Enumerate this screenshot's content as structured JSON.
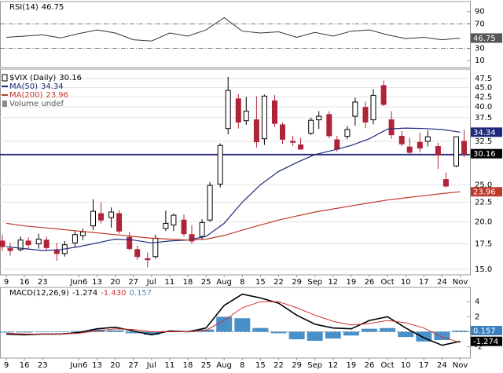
{
  "chart_data": [
    {
      "type": "line",
      "title": "RSI(14)",
      "ylim": [
        -1.25,
        106.25
      ],
      "yticks": [
        10,
        30,
        70,
        90
      ],
      "reference_lines": [
        30,
        70
      ],
      "reference_color": "#666",
      "series": [
        {
          "color": "#333",
          "box_color": "#555",
          "values": [
            48,
            50,
            52,
            47,
            54,
            60,
            55,
            44,
            42,
            55,
            50,
            60,
            80,
            58,
            55,
            57,
            48,
            56,
            50,
            58,
            60,
            52,
            46,
            48,
            44,
            46.75
          ]
        }
      ]
    },
    {
      "type": "candlestick",
      "log_scale": true,
      "ylim": [
        14.51,
        50.26
      ],
      "yticks": [
        47.5,
        {
          "value": 45,
          "label": "45.0"
        },
        42.5,
        {
          "value": 40,
          "label": "40.0"
        },
        37.5,
        32.5,
        {
          "value": 25,
          "label": "25.0"
        },
        22.5,
        {
          "value": 20,
          "label": "20.0"
        },
        17.5,
        {
          "value": 15,
          "label": "15.0"
        }
      ],
      "grid": true,
      "reference_lines": [
        30
      ],
      "reference_color": "#2b2f7a",
      "categories": [
        "9",
        "16",
        "23",
        null,
        "Jun6",
        "13",
        "20",
        "27",
        "Jul",
        "11",
        "18",
        "25",
        "Aug",
        "8",
        "15",
        "22",
        "29",
        "Sep",
        "12",
        "19",
        "26",
        "Oct",
        "10",
        "17",
        "24",
        "Nov"
      ],
      "candles": {
        "name": "$VIX (Daily)",
        "up_color": "#000000",
        "down_color": "#b0243a",
        "box_color": "#000000",
        "open": [
          17.8,
          17.0,
          16.9,
          17.8,
          17.5,
          17.9,
          16.8,
          16.5,
          17.6,
          18.4,
          19.5,
          21.0,
          20.5,
          21.0,
          18.2,
          16.9,
          16.0,
          16.2,
          19.2,
          19.6,
          20.2,
          18.5,
          18.3,
          20.2,
          25.1,
          35.1,
          42.0,
          36.8,
          37.0,
          33.0,
          41.5,
          35.9,
          32.5,
          31.8,
          34.1,
          37.0,
          38.2,
          32.8,
          33.5,
          37.8,
          39.9,
          37.0,
          45.5,
          37.0,
          33.5,
          31.4,
          32.3,
          32.5,
          31.5,
          25.8,
          28.0,
          32.5
        ],
        "high": [
          18.5,
          17.6,
          18.3,
          18.2,
          18.6,
          18.3,
          17.6,
          17.8,
          18.9,
          19.2,
          22.9,
          22.5,
          21.8,
          21.4,
          18.8,
          17.3,
          16.6,
          18.5,
          21.4,
          21.0,
          20.9,
          19.6,
          20.3,
          25.4,
          32.1,
          48.0,
          43.2,
          42.5,
          42.7,
          43.1,
          43.0,
          36.4,
          33.6,
          33.2,
          37.5,
          39.0,
          39.0,
          33.6,
          35.6,
          42.3,
          41.3,
          44.5,
          46.9,
          39.0,
          34.6,
          33.2,
          34.2,
          34.7,
          32.2,
          26.9,
          33.0,
          34.8
        ],
        "low": [
          16.8,
          16.3,
          16.7,
          16.9,
          17.0,
          16.8,
          15.8,
          16.2,
          17.2,
          17.9,
          19.0,
          19.8,
          19.3,
          18.6,
          16.8,
          15.9,
          15.2,
          16.0,
          18.9,
          18.9,
          18.3,
          17.5,
          17.9,
          20.0,
          24.6,
          33.9,
          35.1,
          35.9,
          31.3,
          31.8,
          35.4,
          32.0,
          31.6,
          30.9,
          33.8,
          35.0,
          33.1,
          30.5,
          32.9,
          35.7,
          35.2,
          36.0,
          40.2,
          33.0,
          31.6,
          30.1,
          30.4,
          31.5,
          27.5,
          24.6,
          27.8,
          29.5
        ],
        "close": [
          17.2,
          16.8,
          17.9,
          17.4,
          18.0,
          17.1,
          16.5,
          17.4,
          18.5,
          18.8,
          21.3,
          20.2,
          21.2,
          18.9,
          17.0,
          16.2,
          15.9,
          18.1,
          19.8,
          20.8,
          18.6,
          17.8,
          19.9,
          24.9,
          31.7,
          44.2,
          36.5,
          39.0,
          32.4,
          42.7,
          36.2,
          32.9,
          32.3,
          31.0,
          36.9,
          37.8,
          33.6,
          31.0,
          34.9,
          41.2,
          36.5,
          42.9,
          40.6,
          33.8,
          32.0,
          30.4,
          31.2,
          33.4,
          29.9,
          24.8,
          33.4,
          30.16
        ]
      },
      "series": [
        {
          "name": "MA(50)",
          "color": "#1f2a7a",
          "values": [
            17.2,
            17.0,
            16.8,
            16.9,
            17.2,
            17.6,
            18.0,
            17.9,
            17.6,
            17.8,
            17.9,
            18.3,
            19.8,
            22.5,
            25.0,
            27.1,
            28.6,
            30.0,
            30.8,
            31.7,
            33.0,
            35.0,
            35.2,
            35.1,
            34.9,
            34.34
          ]
        },
        {
          "name": "MA(200)",
          "color": "#c0392b",
          "values": [
            19.8,
            19.5,
            19.3,
            19.1,
            18.9,
            18.7,
            18.5,
            18.3,
            18.1,
            18.0,
            17.9,
            18.0,
            18.4,
            19.0,
            19.6,
            20.2,
            20.7,
            21.2,
            21.6,
            22.0,
            22.4,
            22.8,
            23.1,
            23.4,
            23.7,
            23.96
          ]
        }
      ],
      "volume_label": "Volume undef"
    },
    {
      "type": "macd",
      "title": "MACD(12,26,9)",
      "ylim": [
        -3.5,
        5.9
      ],
      "yticks": [
        4,
        2,
        -2
      ],
      "categories": [
        "9",
        "16",
        "23",
        null,
        "Jun6",
        "13",
        "20",
        "27",
        "Jul",
        "11",
        "18",
        "25",
        "Aug",
        "8",
        "15",
        "22",
        "29",
        "Sep",
        "12",
        "19",
        "26",
        "Oct",
        "10",
        "17",
        "24",
        "Nov"
      ],
      "histogram": {
        "color": "#4a90c8",
        "box_color": "#3a7fc0",
        "values": [
          -0.1,
          -0.1,
          0,
          0,
          0.1,
          0.3,
          0.2,
          -0.2,
          -0.4,
          0.1,
          0,
          0.3,
          2.0,
          1.8,
          0.5,
          -0.2,
          -1.0,
          -1.2,
          -0.9,
          -0.5,
          0.4,
          0.5,
          -0.7,
          -1.3,
          -1.1,
          0.157
        ]
      },
      "series": [
        {
          "color": "#000000",
          "box_color": "#000000",
          "values": [
            -0.3,
            -0.4,
            -0.3,
            -0.3,
            -0.1,
            0.4,
            0.6,
            0.1,
            -0.4,
            0.1,
            0.0,
            0.5,
            3.5,
            5.0,
            4.5,
            3.8,
            2.2,
            1.0,
            0.5,
            0.4,
            1.5,
            2.0,
            0.5,
            -0.8,
            -1.8,
            -1.274
          ]
        },
        {
          "color": "#d03030",
          "values": [
            -0.2,
            -0.3,
            -0.3,
            -0.3,
            -0.2,
            0.1,
            0.4,
            0.3,
            0.0,
            0.0,
            0.0,
            0.2,
            1.5,
            3.2,
            4.0,
            4.0,
            3.2,
            2.2,
            1.4,
            0.9,
            1.1,
            1.5,
            1.2,
            0.5,
            -0.7,
            -1.43
          ],
          "value_labels": [
            null,
            null,
            null,
            null,
            null,
            null,
            null,
            null,
            null,
            null,
            null,
            null,
            null,
            null,
            null,
            null,
            null,
            null,
            null,
            null,
            null,
            null,
            null,
            null,
            null,
            "-1.430"
          ]
        }
      ]
    }
  ]
}
